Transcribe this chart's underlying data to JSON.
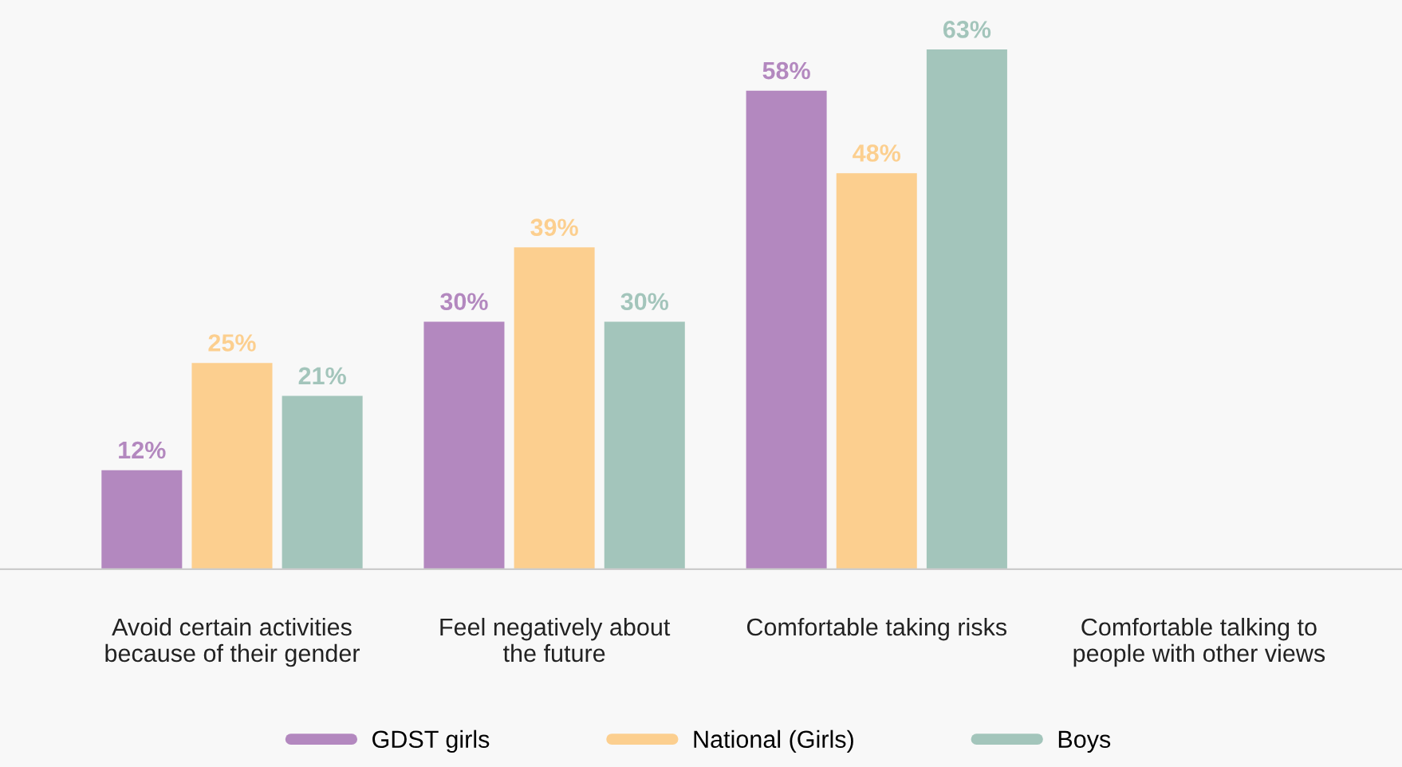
{
  "chart_data": {
    "type": "bar",
    "categories": [
      "Avoid certain activities\nbecause of their gender",
      "Feel negatively about\nthe future",
      "Comfortable taking risks",
      "Comfortable talking to\npeople with other views"
    ],
    "series": [
      {
        "name": "GDST girls",
        "color": "#b388bf",
        "values": [
          12,
          30,
          58,
          null
        ],
        "value_labels": [
          "12%",
          "30%",
          "58%",
          null
        ]
      },
      {
        "name": "National (Girls)",
        "color": "#fccf8f",
        "values": [
          25,
          39,
          48,
          null
        ],
        "value_labels": [
          "25%",
          "39%",
          "48%",
          null
        ]
      },
      {
        "name": "Boys",
        "color": "#a3c5bb",
        "values": [
          21,
          30,
          63,
          null
        ],
        "value_labels": [
          "21%",
          "30%",
          "63%",
          null
        ]
      }
    ],
    "ylim": [
      0,
      69
    ],
    "grid": false,
    "legend": "bottom"
  }
}
